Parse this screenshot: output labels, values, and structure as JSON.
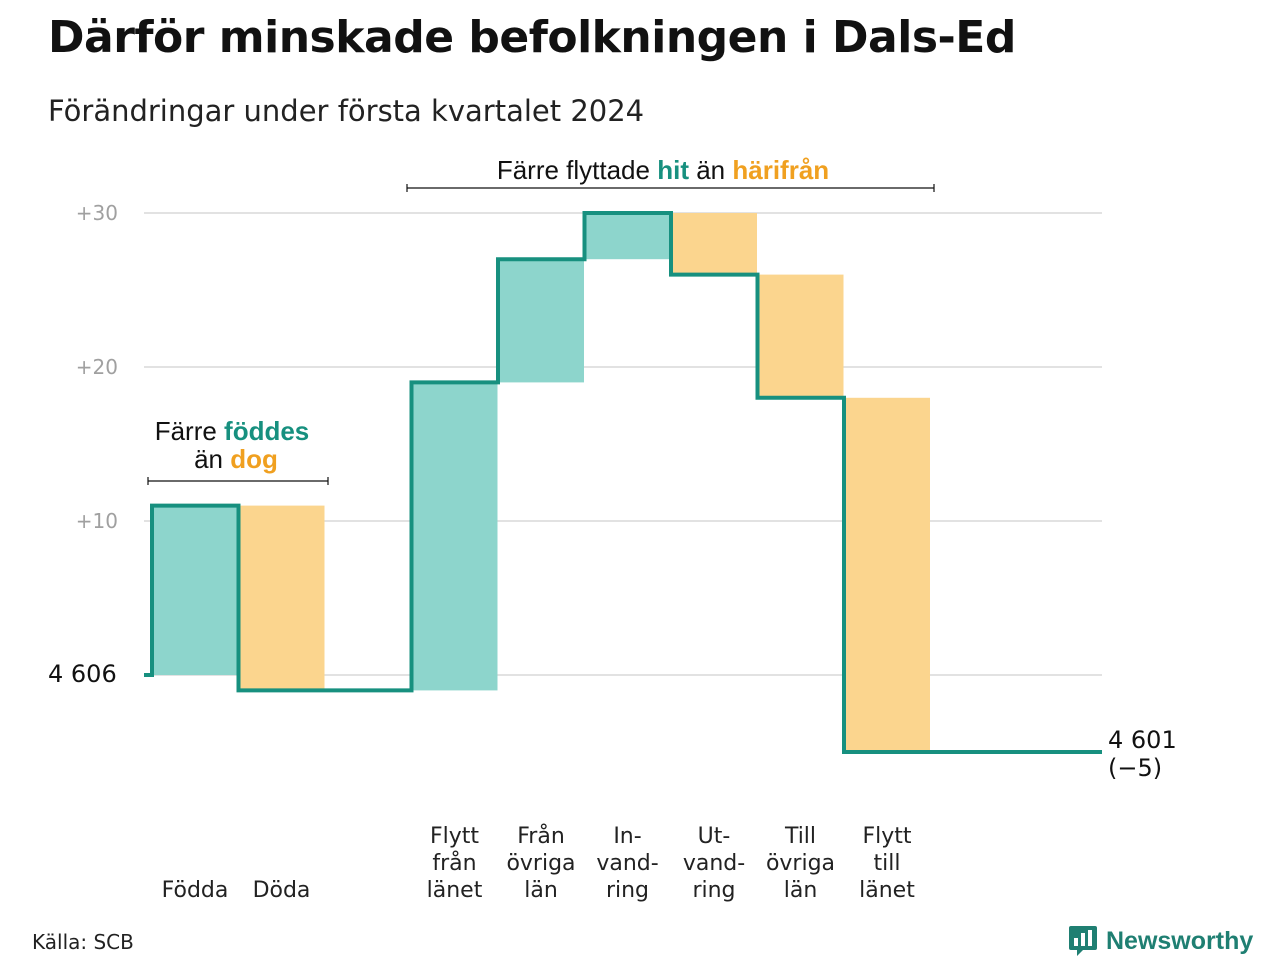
{
  "title": "Därför minskade befolkningen i Dals-Ed",
  "subtitle": "Förändringar under första kvartalet 2024",
  "source": "Källa: SCB",
  "logo": {
    "name": "Newsworthy",
    "icon": "bar-chart-speech-icon"
  },
  "colors": {
    "increase": "#8dd5cc",
    "decrease": "#fbd58e",
    "line": "#17907f",
    "green_text": "#17907f",
    "orange_text": "#f0a020",
    "grid": "#e2e2e2"
  },
  "annotations": {
    "births_deaths": {
      "line1_a": "Färre ",
      "line1_b": "föddes",
      "line2_a": "än ",
      "line2_b": "dog"
    },
    "migration": {
      "a": "Färre flyttade ",
      "b": "hit",
      "c": " än ",
      "d": "härifrån"
    }
  },
  "chart_data": {
    "type": "waterfall",
    "start_value": 4606,
    "start_label": "4 606",
    "end_value": 4601,
    "end_label": "4 601",
    "end_change_label": "(−5)",
    "y_ticks": [
      {
        "offset": 10,
        "label": "+10"
      },
      {
        "offset": 20,
        "label": "+20"
      },
      {
        "offset": 30,
        "label": "+30"
      }
    ],
    "ylim_offset": [
      -6,
      30
    ],
    "grid": true,
    "steps": [
      {
        "label": [
          "",
          "",
          "Födda"
        ],
        "change": 11
      },
      {
        "label": [
          "",
          "",
          "Döda"
        ],
        "change": -12
      },
      {
        "label": [
          "",
          "",
          ""
        ],
        "change": 0
      },
      {
        "label": [
          "Flytt",
          "från",
          "länet"
        ],
        "change": 20
      },
      {
        "label": [
          "Från",
          "övriga",
          "län"
        ],
        "change": 8
      },
      {
        "label": [
          "In-",
          "vand-",
          "ring"
        ],
        "change": 3
      },
      {
        "label": [
          "Ut-",
          "vand-",
          "ring"
        ],
        "change": -4
      },
      {
        "label": [
          "Till",
          "övriga",
          "län"
        ],
        "change": -8
      },
      {
        "label": [
          "Flytt",
          "till",
          "länet"
        ],
        "change": -23
      }
    ]
  }
}
